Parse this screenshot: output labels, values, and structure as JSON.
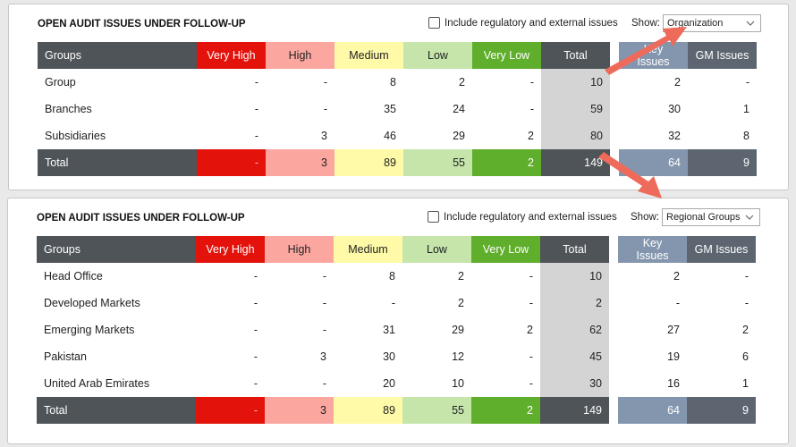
{
  "panel1": {
    "title": "OPEN AUDIT ISSUES UNDER FOLLOW-UP",
    "checkbox_label": "Include regulatory and external issues",
    "show_label": "Show:",
    "select_value": "Organization",
    "headers": [
      "Groups",
      "Very High",
      "High",
      "Medium",
      "Low",
      "Very Low",
      "Total",
      "Key Issues",
      "GM Issues"
    ],
    "rows": [
      {
        "group": "Group",
        "vh": "-",
        "h": "-",
        "m": "8",
        "l": "2",
        "vl": "-",
        "total": "10",
        "key": "2",
        "gm": "-"
      },
      {
        "group": "Branches",
        "vh": "-",
        "h": "-",
        "m": "35",
        "l": "24",
        "vl": "-",
        "total": "59",
        "key": "30",
        "gm": "1"
      },
      {
        "group": "Subsidiaries",
        "vh": "-",
        "h": "3",
        "m": "46",
        "l": "29",
        "vl": "2",
        "total": "80",
        "key": "32",
        "gm": "8"
      }
    ],
    "total": {
      "group": "Total",
      "vh": "-",
      "h": "3",
      "m": "89",
      "l": "55",
      "vl": "2",
      "total": "149",
      "key": "64",
      "gm": "9"
    }
  },
  "panel2": {
    "title": "OPEN AUDIT ISSUES UNDER FOLLOW-UP",
    "checkbox_label": "Include regulatory and external issues",
    "show_label": "Show:",
    "select_value": "Regional Groups",
    "headers": [
      "Groups",
      "Very High",
      "High",
      "Medium",
      "Low",
      "Very Low",
      "Total",
      "Key Issues",
      "GM Issues"
    ],
    "rows": [
      {
        "group": "Head Office",
        "vh": "-",
        "h": "-",
        "m": "8",
        "l": "2",
        "vl": "-",
        "total": "10",
        "key": "2",
        "gm": "-"
      },
      {
        "group": "Developed Markets",
        "vh": "-",
        "h": "-",
        "m": "-",
        "l": "2",
        "vl": "-",
        "total": "2",
        "key": "-",
        "gm": "-"
      },
      {
        "group": "Emerging Markets",
        "vh": "-",
        "h": "-",
        "m": "31",
        "l": "29",
        "vl": "2",
        "total": "62",
        "key": "27",
        "gm": "2"
      },
      {
        "group": "Pakistan",
        "vh": "-",
        "h": "3",
        "m": "30",
        "l": "12",
        "vl": "-",
        "total": "45",
        "key": "19",
        "gm": "6"
      },
      {
        "group": "United Arab Emirates",
        "vh": "-",
        "h": "-",
        "m": "20",
        "l": "10",
        "vl": "-",
        "total": "30",
        "key": "16",
        "gm": "1"
      }
    ],
    "total": {
      "group": "Total",
      "vh": "-",
      "h": "3",
      "m": "89",
      "l": "55",
      "vl": "2",
      "total": "149",
      "key": "64",
      "gm": "9"
    }
  },
  "icons": {
    "dropdown": "chevron-down-icon",
    "annotation": "arrow-annotation"
  },
  "colors": {
    "very_high": "#e3120b",
    "high": "#fba7a0",
    "medium": "#fefaa8",
    "low": "#c5e5ab",
    "very_low": "#5fae2c",
    "header_dark": "#4f5459",
    "key_issues": "#8496ae",
    "arrow": "#ee6a5a"
  }
}
